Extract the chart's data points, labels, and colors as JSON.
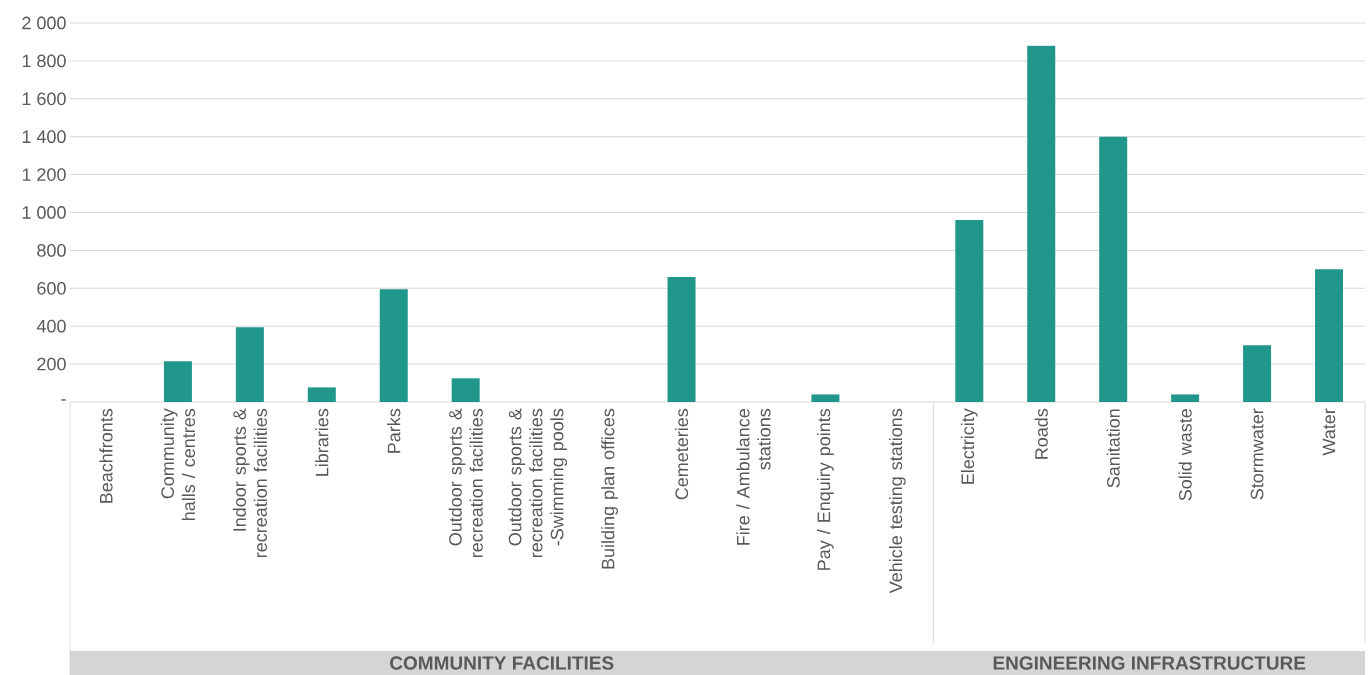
{
  "chart_data": {
    "type": "bar",
    "categories": [
      "Beachfronts",
      "Community halls / centres",
      "Indoor sports & recreation facilities",
      "Libraries",
      "Parks",
      "Outdoor sports & recreation facilities",
      "Outdoor sports & recreation facilities -Swimming pools",
      "Building plan offices",
      "Cemeteries",
      "Fire / Ambulance stations",
      "Pay / Enquiry points",
      "Vehicle testing stations",
      "Electricity",
      "Roads",
      "Sanitation",
      "Solid waste",
      "Stormwater",
      "Water"
    ],
    "values": [
      0,
      215,
      395,
      77,
      595,
      125,
      0,
      0,
      660,
      0,
      40,
      0,
      960,
      1880,
      1400,
      40,
      300,
      700
    ],
    "color": "#21978b",
    "ylim": [
      0,
      2000
    ],
    "yticks": [
      {
        "value": 0,
        "label": "-"
      },
      200,
      400,
      600,
      800,
      {
        "value": 1000,
        "label": "1 000"
      },
      {
        "value": 1200,
        "label": "1 200"
      },
      {
        "value": 1400,
        "label": "1 400"
      },
      {
        "value": 1600,
        "label": "1 600"
      },
      {
        "value": 1800,
        "label": "1 800"
      },
      {
        "value": 2000,
        "label": "2 000"
      }
    ],
    "grid": "y",
    "annotations": [
      "COMMUNITY FACILITIES",
      "ENGINEERING INFRASTRUCTURE"
    ]
  }
}
